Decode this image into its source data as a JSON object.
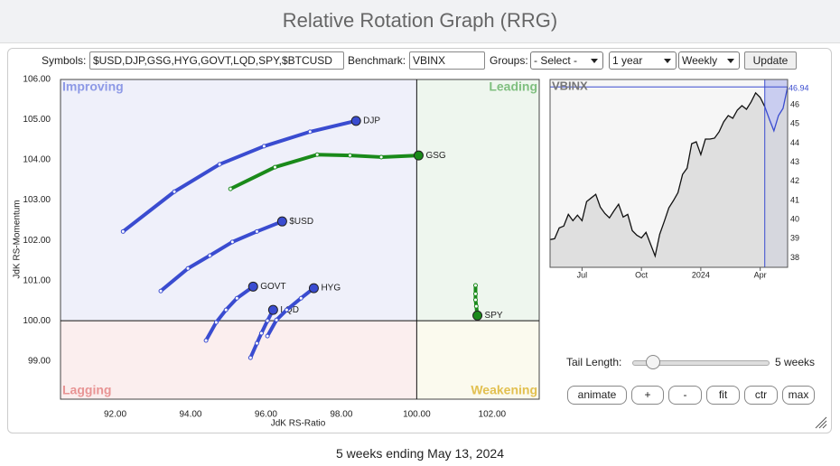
{
  "header": {
    "title": "Relative Rotation Graph (RRG)"
  },
  "controls": {
    "symbols_label": "Symbols:",
    "symbols": "$USD,DJP,GSG,HYG,GOVT,LQD,SPY,$BTCUSD",
    "benchmark_label": "Benchmark:",
    "benchmark": "VBINX",
    "groups_label": "Groups:",
    "groups": "- Select -",
    "period": "1 year",
    "frequency": "Weekly",
    "update": "Update",
    "tail_length_label": "Tail Length:",
    "tail_length": 5,
    "tail_length_text": "5 weeks",
    "buttons": [
      "animate",
      "+",
      "-",
      "fit",
      "ctr",
      "max"
    ]
  },
  "chart_data": [
    {
      "type": "rrg",
      "xlabel": "JdK RS-Ratio",
      "ylabel": "JdK RS-Momentum",
      "xlim": [
        90.55,
        103.25
      ],
      "ylim": [
        98.05,
        106
      ],
      "xticks": [
        {
          "value": 92,
          "label": "92.00"
        },
        {
          "value": 94,
          "label": "94.00"
        },
        {
          "value": 96,
          "label": "96.00"
        },
        {
          "value": 98,
          "label": "98.00"
        },
        {
          "value": 100,
          "label": "100.00"
        },
        {
          "value": 102,
          "label": "102.00"
        }
      ],
      "yticks": [
        {
          "value": 99,
          "label": "99.00"
        },
        {
          "value": 100,
          "label": "100.00"
        },
        {
          "value": 101,
          "label": "101.00"
        },
        {
          "value": 102,
          "label": "102.00"
        },
        {
          "value": 103,
          "label": "103.00"
        },
        {
          "value": 104,
          "label": "104.00"
        },
        {
          "value": 105,
          "label": "105.00"
        },
        {
          "value": 106,
          "label": "106.00"
        }
      ],
      "crosshair": [
        100,
        100
      ],
      "quadrants": [
        {
          "label": "Improving",
          "corner": "top-left",
          "color": "#8d99e6",
          "fill": "#eff0fa"
        },
        {
          "label": "Leading",
          "corner": "top-right",
          "color": "#7fbf7f",
          "fill": "#eef6ee"
        },
        {
          "label": "Lagging",
          "corner": "bottom-left",
          "color": "#e89494",
          "fill": "#fbeeee"
        },
        {
          "label": "Weakening",
          "corner": "bottom-right",
          "color": "#e2c050",
          "fill": "#fbfaee"
        }
      ],
      "series": [
        {
          "name": "DJP",
          "color": "#3a4cd0",
          "x": [
            92.21,
            93.57,
            94.77,
            95.95,
            97.17,
            98.39
          ],
          "values": [
            102.22,
            103.21,
            103.89,
            104.34,
            104.7,
            104.97
          ]
        },
        {
          "name": "GSG",
          "color": "#1a8a1a",
          "x": [
            95.06,
            96.24,
            97.36,
            98.23,
            99.06,
            100.05
          ],
          "values": [
            103.28,
            103.82,
            104.13,
            104.11,
            104.07,
            104.11
          ]
        },
        {
          "name": "$USD",
          "color": "#3a4cd0",
          "x": [
            93.21,
            93.93,
            94.51,
            95.11,
            95.76,
            96.43
          ],
          "values": [
            100.74,
            101.3,
            101.62,
            101.96,
            102.22,
            102.47
          ]
        },
        {
          "name": "GOVT",
          "color": "#3a4cd0",
          "x": [
            94.41,
            94.68,
            94.94,
            95.23,
            95.66
          ],
          "values": [
            99.51,
            99.96,
            100.27,
            100.56,
            100.85
          ]
        },
        {
          "name": "LQD",
          "color": "#3a4cd0",
          "x": [
            95.59,
            95.76,
            95.88,
            96.04,
            96.19
          ],
          "values": [
            99.08,
            99.44,
            99.69,
            100.0,
            100.27
          ]
        },
        {
          "name": "HYG",
          "color": "#3a4cd0",
          "x": [
            96.04,
            96.28,
            96.55,
            96.93,
            97.27
          ],
          "values": [
            99.62,
            100.02,
            100.27,
            100.56,
            100.81
          ]
        },
        {
          "name": "SPY",
          "color": "#1a8a1a",
          "x": [
            101.56,
            101.56,
            101.56,
            101.58,
            101.61
          ],
          "values": [
            100.88,
            100.67,
            100.52,
            100.36,
            100.13
          ]
        }
      ]
    },
    {
      "type": "area",
      "title": "VBINX",
      "color": "#111111",
      "tail_color": "#3a4cd0",
      "fill": "#d9d9d9",
      "xlim": [
        0,
        52
      ],
      "ylim": [
        37.5,
        47.33
      ],
      "xticks": [
        {
          "value": 7,
          "label": "Jul"
        },
        {
          "value": 20,
          "label": "Oct"
        },
        {
          "value": 33,
          "label": "2024"
        },
        {
          "value": 46,
          "label": "Apr"
        }
      ],
      "yticks": [
        38,
        39,
        40,
        41,
        42,
        43,
        44,
        45,
        46
      ],
      "values": [
        38.95,
        39.0,
        39.56,
        39.66,
        40.27,
        39.94,
        40.23,
        39.94,
        40.94,
        41.13,
        41.32,
        40.65,
        40.32,
        40.09,
        40.46,
        40.8,
        40.13,
        40.27,
        39.42,
        39.18,
        39.04,
        39.33,
        38.71,
        38.09,
        39.23,
        39.9,
        40.61,
        40.99,
        41.41,
        42.36,
        42.69,
        43.97,
        44.07,
        43.4,
        44.21,
        44.21,
        44.26,
        44.59,
        45.11,
        45.44,
        45.3,
        45.73,
        45.96,
        45.77,
        46.15,
        46.63,
        46.39,
        45.91,
        45.25,
        44.64,
        45.44,
        45.82,
        46.94
      ]
    }
  ],
  "footer": {
    "text": "5 weeks ending May 13, 2024"
  }
}
